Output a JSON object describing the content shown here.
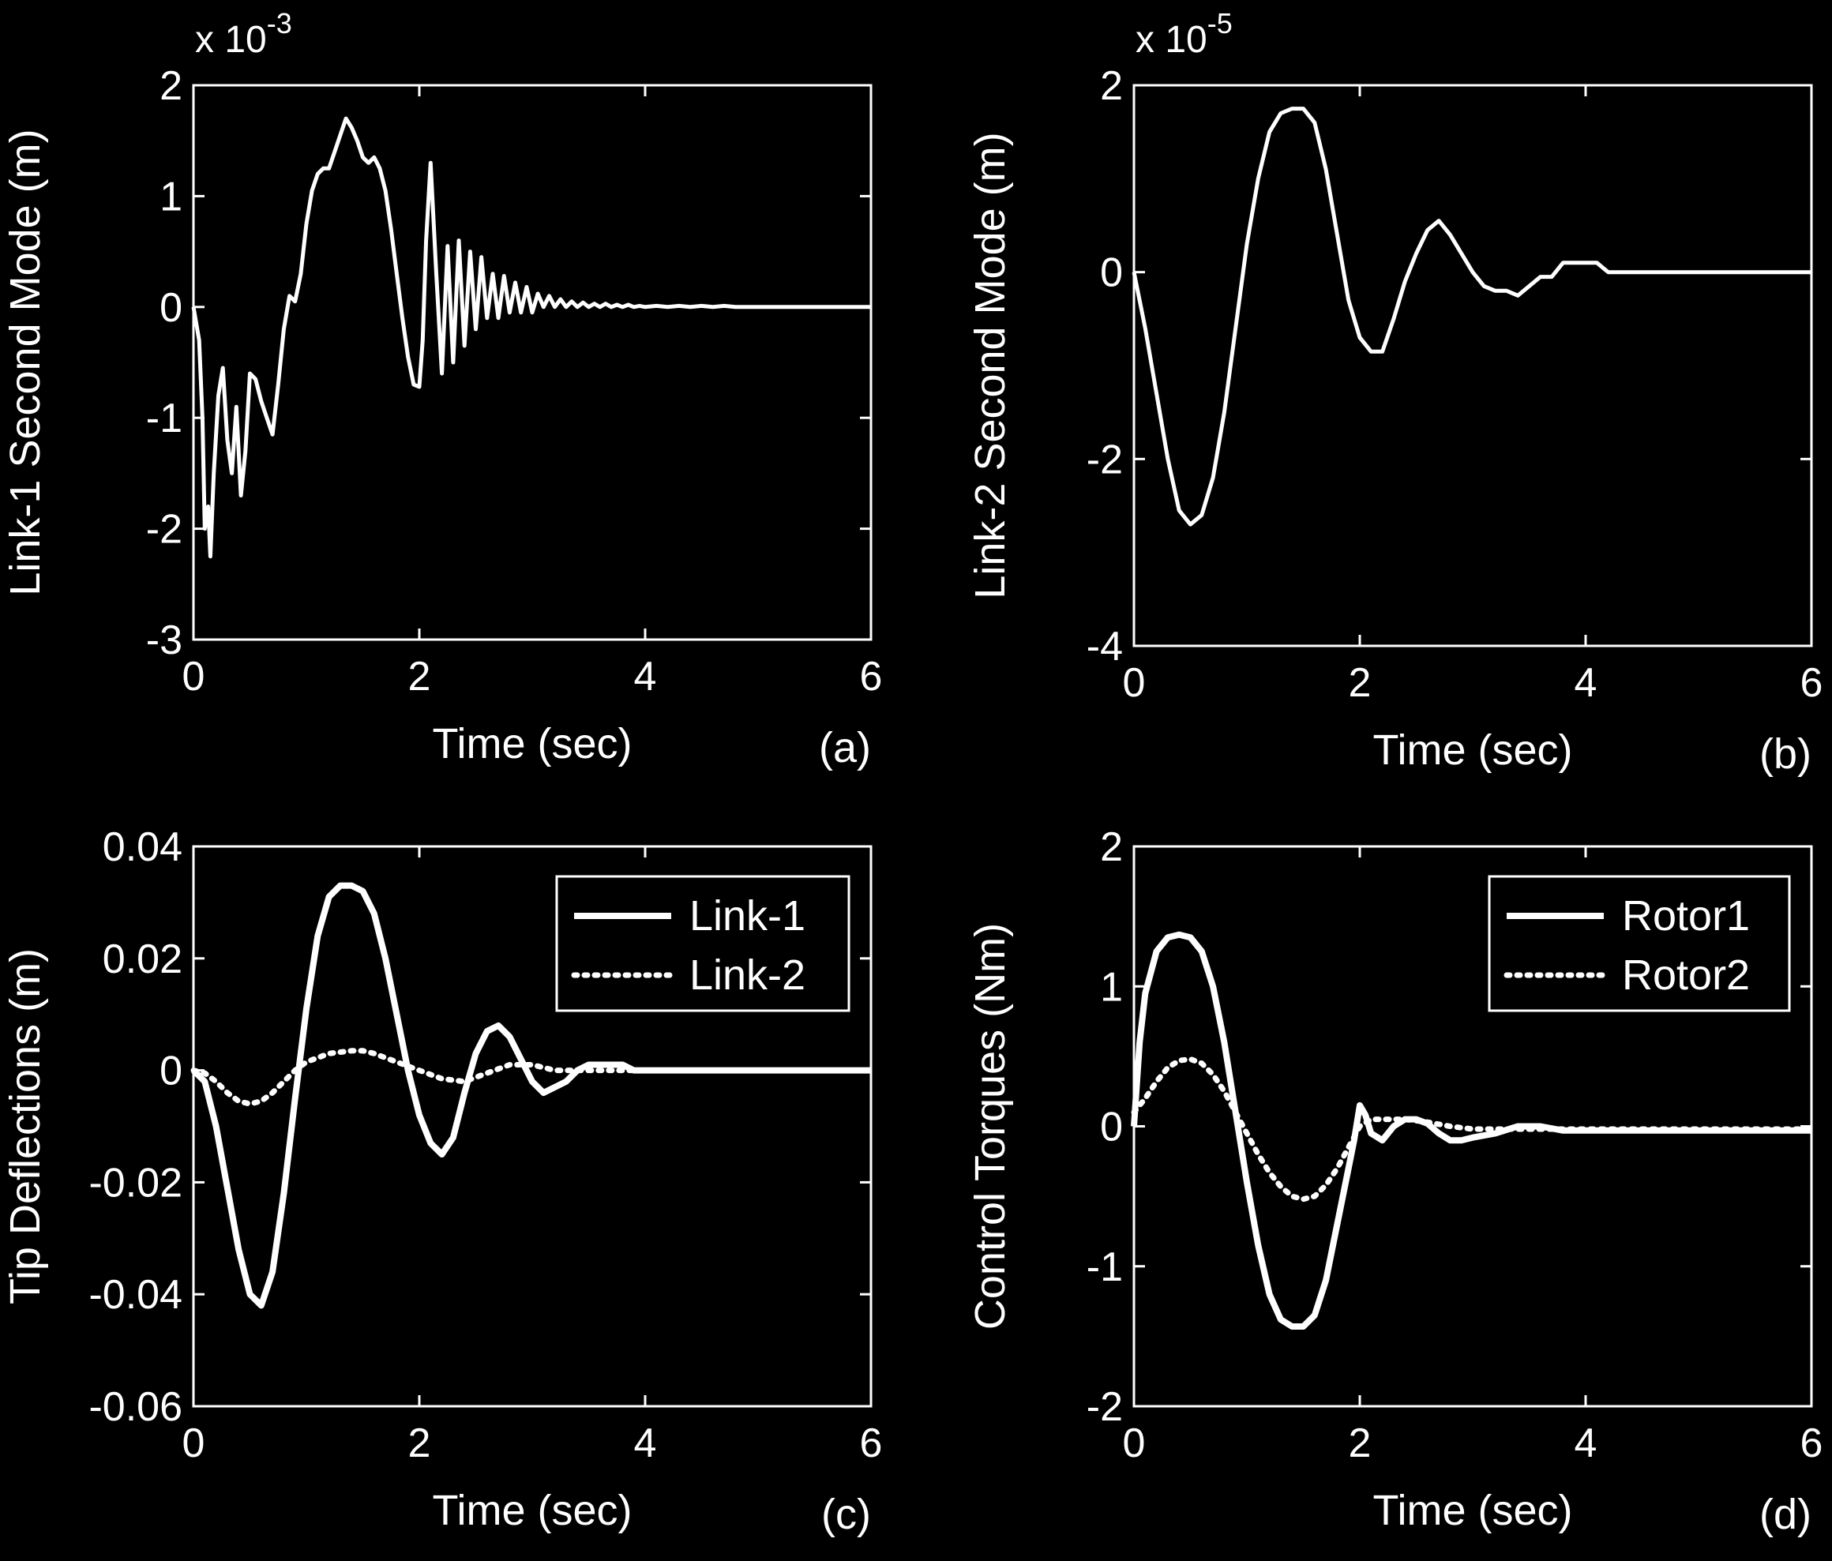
{
  "chart_data": [
    {
      "panel": "(a)",
      "type": "line",
      "xlabel": "Time (sec)",
      "ylabel": "Link-1 Second Mode (m)",
      "multiplier": "x 10",
      "multiplier_exp": "-3",
      "xlim": [
        0,
        6
      ],
      "ylim": [
        -3,
        2
      ],
      "xticks": [
        "0",
        "2",
        "4",
        "6"
      ],
      "yticks": [
        "2",
        "1",
        "0",
        "-1",
        "-2",
        "-3"
      ],
      "legend": null,
      "series": [
        {
          "style": "solid",
          "x": [
            0,
            0.05,
            0.08,
            0.1,
            0.13,
            0.15,
            0.18,
            0.22,
            0.26,
            0.3,
            0.34,
            0.38,
            0.42,
            0.46,
            0.5,
            0.55,
            0.6,
            0.65,
            0.7,
            0.75,
            0.8,
            0.85,
            0.9,
            0.95,
            1.0,
            1.05,
            1.1,
            1.15,
            1.2,
            1.25,
            1.3,
            1.35,
            1.4,
            1.45,
            1.5,
            1.55,
            1.6,
            1.65,
            1.7,
            1.75,
            1.8,
            1.85,
            1.9,
            1.95,
            2.0,
            2.03,
            2.06,
            2.1,
            2.15,
            2.2,
            2.25,
            2.3,
            2.35,
            2.4,
            2.45,
            2.5,
            2.55,
            2.6,
            2.65,
            2.7,
            2.75,
            2.8,
            2.85,
            2.9,
            2.95,
            3.0,
            3.05,
            3.1,
            3.15,
            3.2,
            3.25,
            3.3,
            3.35,
            3.4,
            3.45,
            3.5,
            3.55,
            3.6,
            3.65,
            3.7,
            3.75,
            3.8,
            3.85,
            3.9,
            3.95,
            4.0,
            4.1,
            4.2,
            4.3,
            4.4,
            4.5,
            4.6,
            4.7,
            4.8,
            4.9,
            5.0,
            5.2,
            5.4,
            5.6,
            5.8,
            6.0
          ],
          "y": [
            0,
            -0.3,
            -1.0,
            -2.0,
            -1.8,
            -2.25,
            -1.5,
            -0.8,
            -0.55,
            -1.2,
            -1.5,
            -0.9,
            -1.7,
            -1.3,
            -0.6,
            -0.65,
            -0.85,
            -1.0,
            -1.15,
            -0.7,
            -0.2,
            0.1,
            0.05,
            0.3,
            0.75,
            1.05,
            1.2,
            1.25,
            1.25,
            1.4,
            1.55,
            1.7,
            1.62,
            1.5,
            1.35,
            1.3,
            1.35,
            1.25,
            1.05,
            0.7,
            0.3,
            -0.1,
            -0.45,
            -0.7,
            -0.72,
            -0.3,
            0.6,
            1.3,
            0.3,
            -0.6,
            0.55,
            -0.5,
            0.6,
            -0.35,
            0.5,
            -0.2,
            0.45,
            -0.1,
            0.3,
            -0.1,
            0.28,
            -0.05,
            0.22,
            -0.05,
            0.18,
            -0.05,
            0.12,
            0.0,
            0.1,
            0.0,
            0.07,
            0.0,
            0.05,
            0.0,
            0.04,
            0.0,
            0.03,
            0.0,
            0.03,
            0.0,
            0.02,
            0.0,
            0.02,
            0.0,
            0.01,
            0.0,
            0.01,
            0.0,
            0.01,
            0.0,
            0.01,
            0.0,
            0.01,
            0.0,
            0.0,
            0.0,
            0.0,
            0.0,
            0.0,
            0.0,
            0.0
          ]
        }
      ]
    },
    {
      "panel": "(b)",
      "type": "line",
      "xlabel": "Time (sec)",
      "ylabel": "Link-2 Second Mode (m)",
      "multiplier": "x 10",
      "multiplier_exp": "-5",
      "xlim": [
        0,
        6
      ],
      "ylim": [
        -4,
        2
      ],
      "xticks": [
        "0",
        "2",
        "4",
        "6"
      ],
      "yticks": [
        "2",
        "0",
        "-2",
        "-4"
      ],
      "legend": null,
      "series": [
        {
          "style": "solid",
          "x": [
            0,
            0.1,
            0.2,
            0.3,
            0.4,
            0.5,
            0.6,
            0.7,
            0.8,
            0.9,
            1.0,
            1.1,
            1.2,
            1.3,
            1.4,
            1.5,
            1.6,
            1.7,
            1.8,
            1.9,
            2.0,
            2.1,
            2.2,
            2.3,
            2.4,
            2.5,
            2.6,
            2.7,
            2.8,
            2.9,
            3.0,
            3.1,
            3.2,
            3.3,
            3.4,
            3.5,
            3.6,
            3.7,
            3.8,
            3.9,
            4.0,
            4.1,
            4.2,
            4.5,
            5.0,
            5.5,
            6.0
          ],
          "y": [
            0,
            -0.6,
            -1.3,
            -2.0,
            -2.55,
            -2.7,
            -2.6,
            -2.2,
            -1.5,
            -0.6,
            0.3,
            1.0,
            1.5,
            1.7,
            1.75,
            1.75,
            1.6,
            1.1,
            0.4,
            -0.3,
            -0.7,
            -0.85,
            -0.85,
            -0.5,
            -0.1,
            0.2,
            0.45,
            0.55,
            0.4,
            0.2,
            0.0,
            -0.15,
            -0.2,
            -0.2,
            -0.25,
            -0.15,
            -0.05,
            -0.05,
            0.1,
            0.1,
            0.1,
            0.1,
            0.0,
            0.0,
            0.0,
            0.0,
            0.0
          ]
        }
      ]
    },
    {
      "panel": "(c)",
      "type": "line",
      "xlabel": "Time (sec)",
      "ylabel": "Tip Deflections (m)",
      "xlim": [
        0,
        6
      ],
      "ylim": [
        -0.06,
        0.04
      ],
      "xticks": [
        "0",
        "2",
        "4",
        "6"
      ],
      "yticks": [
        "0.04",
        "0.02",
        "0",
        "-0.02",
        "-0.04",
        "-0.06"
      ],
      "legend": "top-right",
      "series": [
        {
          "name": "Link-1",
          "style": "solid",
          "x": [
            0,
            0.1,
            0.2,
            0.3,
            0.4,
            0.5,
            0.6,
            0.7,
            0.8,
            0.9,
            1.0,
            1.1,
            1.2,
            1.3,
            1.4,
            1.5,
            1.6,
            1.7,
            1.8,
            1.9,
            2.0,
            2.1,
            2.2,
            2.3,
            2.4,
            2.5,
            2.6,
            2.7,
            2.8,
            2.9,
            3.0,
            3.1,
            3.2,
            3.3,
            3.4,
            3.5,
            3.6,
            3.7,
            3.8,
            3.9,
            4.0,
            4.2,
            4.5,
            5.0,
            5.5,
            6.0
          ],
          "y": [
            0,
            -0.002,
            -0.01,
            -0.021,
            -0.032,
            -0.04,
            -0.042,
            -0.036,
            -0.022,
            -0.005,
            0.011,
            0.024,
            0.031,
            0.033,
            0.033,
            0.032,
            0.028,
            0.02,
            0.01,
            0.0,
            -0.008,
            -0.013,
            -0.015,
            -0.012,
            -0.004,
            0.003,
            0.007,
            0.008,
            0.006,
            0.002,
            -0.002,
            -0.004,
            -0.003,
            -0.002,
            0.0,
            0.001,
            0.001,
            0.001,
            0.001,
            0.0,
            0.0,
            0.0,
            0.0,
            0.0,
            0.0,
            0.0
          ]
        },
        {
          "name": "Link-2",
          "style": "dotted",
          "x": [
            0,
            0.1,
            0.2,
            0.3,
            0.4,
            0.5,
            0.6,
            0.7,
            0.8,
            0.9,
            1.0,
            1.2,
            1.4,
            1.5,
            1.6,
            1.8,
            2.0,
            2.2,
            2.4,
            2.6,
            2.8,
            3.0,
            3.2,
            3.4,
            3.6,
            4.0,
            4.5,
            5.0,
            6.0
          ],
          "y": [
            0,
            -0.0005,
            -0.002,
            -0.004,
            -0.0055,
            -0.006,
            -0.0055,
            -0.004,
            -0.002,
            0.0,
            0.0015,
            0.003,
            0.0035,
            0.0035,
            0.003,
            0.0015,
            0.0,
            -0.0015,
            -0.002,
            -0.0005,
            0.001,
            0.001,
            0.0,
            0.0,
            0.0,
            0.0,
            0.0,
            0.0,
            0.0
          ]
        }
      ]
    },
    {
      "panel": "(d)",
      "type": "line",
      "xlabel": "Time (sec)",
      "ylabel": "Control Torques (Nm)",
      "xlim": [
        0,
        6
      ],
      "ylim": [
        -2,
        2
      ],
      "xticks": [
        "0",
        "2",
        "4",
        "6"
      ],
      "yticks": [
        "2",
        "1",
        "0",
        "-1",
        "-2"
      ],
      "legend": "top-right",
      "series": [
        {
          "name": "Rotor1",
          "style": "solid",
          "x": [
            0,
            0.05,
            0.1,
            0.2,
            0.3,
            0.4,
            0.5,
            0.6,
            0.7,
            0.8,
            0.9,
            1.0,
            1.1,
            1.2,
            1.3,
            1.4,
            1.5,
            1.6,
            1.7,
            1.8,
            1.9,
            1.95,
            2.0,
            2.05,
            2.1,
            2.2,
            2.3,
            2.4,
            2.5,
            2.6,
            2.7,
            2.8,
            2.9,
            3.0,
            3.2,
            3.4,
            3.6,
            3.8,
            4.0,
            4.5,
            5.0,
            5.5,
            6.0
          ],
          "y": [
            0,
            0.6,
            0.95,
            1.25,
            1.35,
            1.37,
            1.35,
            1.25,
            1.0,
            0.6,
            0.1,
            -0.4,
            -0.85,
            -1.2,
            -1.38,
            -1.43,
            -1.43,
            -1.35,
            -1.1,
            -0.7,
            -0.3,
            -0.1,
            0.15,
            0.08,
            -0.05,
            -0.1,
            0.0,
            0.05,
            0.05,
            0.02,
            -0.05,
            -0.1,
            -0.1,
            -0.08,
            -0.05,
            0.0,
            0.0,
            -0.03,
            -0.03,
            -0.03,
            -0.03,
            -0.03,
            -0.03
          ]
        },
        {
          "name": "Rotor2",
          "style": "dotted",
          "x": [
            0,
            0.1,
            0.2,
            0.3,
            0.4,
            0.5,
            0.6,
            0.7,
            0.8,
            0.9,
            1.0,
            1.1,
            1.2,
            1.3,
            1.4,
            1.5,
            1.6,
            1.7,
            1.8,
            1.9,
            2.0,
            2.1,
            2.2,
            2.4,
            2.6,
            2.8,
            3.0,
            3.5,
            4.0,
            5.0,
            6.0
          ],
          "y": [
            0.1,
            0.2,
            0.32,
            0.42,
            0.47,
            0.48,
            0.45,
            0.37,
            0.25,
            0.1,
            -0.05,
            -0.2,
            -0.33,
            -0.43,
            -0.5,
            -0.52,
            -0.5,
            -0.42,
            -0.3,
            -0.15,
            0.0,
            0.05,
            0.05,
            0.05,
            0.03,
            0.0,
            -0.02,
            -0.02,
            -0.02,
            -0.02,
            -0.02
          ]
        }
      ]
    }
  ]
}
